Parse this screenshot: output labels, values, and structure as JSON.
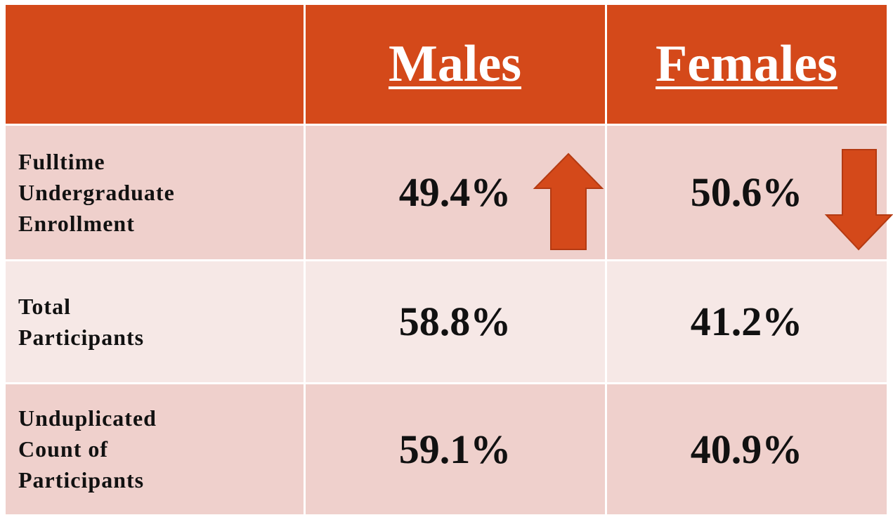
{
  "table": {
    "columns": [
      "Males",
      "Females"
    ],
    "rows": [
      {
        "label": [
          "Fulltime",
          "Undergraduate",
          "Enrollment"
        ],
        "values": [
          "49.4%",
          "50.6%"
        ]
      },
      {
        "label": [
          "Total",
          "Participants"
        ],
        "values": [
          "58.8%",
          "41.2%"
        ]
      },
      {
        "label": [
          "Unduplicated",
          "Count of",
          "Participants"
        ],
        "values": [
          "59.1%",
          "40.9%"
        ]
      }
    ]
  }
}
